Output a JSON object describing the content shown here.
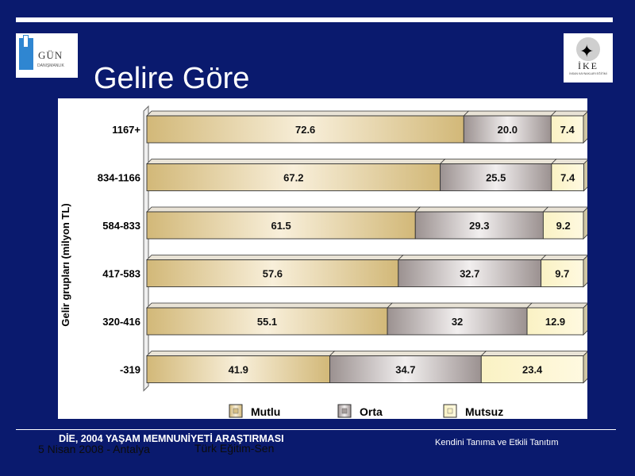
{
  "slide": {
    "title": "Gelire Göre",
    "source": "DİE, 2004 YAŞAM MEMNUNİYETİ ARAŞTIRMASI",
    "date": "5 Nisan 2008 - Antalya",
    "org": "Türk Eğitim-Sen",
    "footer_right": "Kendini Tanıma ve Etkili Tanıtım"
  },
  "logos": {
    "left_text": "GÜN",
    "left_sub": "DANIŞMANLIK",
    "right_text": "İKE",
    "right_sub": "İNSAN KAYNAKLARI EĞİTİMİ"
  },
  "chart_data": {
    "type": "bar",
    "orientation": "horizontal",
    "stacked": true,
    "ylabel": "Gelir grupları (milyon TL)",
    "categories": [
      "1167+",
      "834-1166",
      "584-833",
      "417-583",
      "320-416",
      "-319"
    ],
    "series": [
      {
        "name": "Mutlu",
        "values": [
          72.6,
          67.2,
          61.5,
          57.6,
          55.1,
          41.9
        ],
        "color": "#d6bf85"
      },
      {
        "name": "Orta",
        "values": [
          20.0,
          25.5,
          29.3,
          32.7,
          32,
          34.7
        ],
        "color": "#a39a98"
      },
      {
        "name": "Mutsuz",
        "values": [
          7.4,
          7.4,
          9.2,
          9.7,
          12.9,
          23.4
        ],
        "color": "#faf2c4"
      }
    ],
    "value_labels": [
      [
        "72.6",
        "20.0",
        "7.4"
      ],
      [
        "67.2",
        "25.5",
        "7.4"
      ],
      [
        "61.5",
        "29.3",
        "9.2"
      ],
      [
        "57.6",
        "32.7",
        "9.7"
      ],
      [
        "55.1",
        "32",
        "12.9"
      ],
      [
        "41.9",
        "34.7",
        "23.4"
      ]
    ],
    "xlim": [
      0,
      100
    ],
    "legend_position": "bottom",
    "grid": false
  }
}
